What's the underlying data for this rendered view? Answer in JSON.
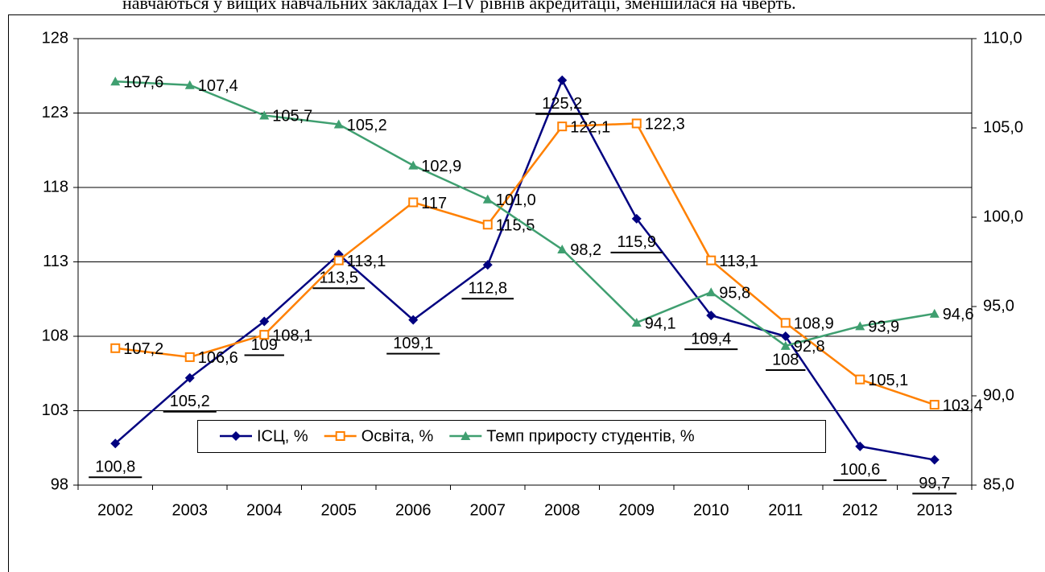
{
  "text": "навчаються у вищих навчальних закладах I–IV рівнів акредитації, зменшилася на чверть.",
  "chart_data": {
    "type": "line",
    "categories": [
      "2002",
      "2003",
      "2004",
      "2005",
      "2006",
      "2007",
      "2008",
      "2009",
      "2010",
      "2011",
      "2012",
      "2013"
    ],
    "series": [
      {
        "name": "ІСЦ, %",
        "color": "#000080",
        "marker": "diamond",
        "label_position": "below",
        "values": [
          100.8,
          105.2,
          109,
          113.5,
          109.1,
          112.8,
          125.2,
          115.9,
          109.4,
          108,
          100.6,
          99.7
        ],
        "value_labels": [
          "100,8",
          "105,2",
          "109",
          "113,5",
          "109,1",
          "112,8",
          "125,2",
          "115,9",
          "109,4",
          "108",
          "100,6",
          "99,7"
        ]
      },
      {
        "name": "Освіта, %",
        "color": "#ff8000",
        "marker": "square",
        "label_position": "right",
        "values": [
          107.2,
          106.6,
          108.1,
          113.1,
          117,
          115.5,
          122.1,
          122.3,
          113.1,
          108.9,
          105.1,
          103.4
        ],
        "value_labels": [
          "107,2",
          "106,6",
          "108,1",
          "113,1",
          "117",
          "115,5",
          "122,1",
          "122,3",
          "113,1",
          "108,9",
          "105,1",
          "103,4"
        ]
      },
      {
        "name": "Темп приросту студентів, %",
        "color": "#3f9f70",
        "marker": "triangle",
        "label_position": "right",
        "axis": "y2",
        "values": [
          107.6,
          107.4,
          105.7,
          105.2,
          102.9,
          101.0,
          98.2,
          94.1,
          95.8,
          92.8,
          93.9,
          94.6
        ],
        "value_labels": [
          "107,6",
          "107,4",
          "105,7",
          "105,2",
          "102,9",
          "101,0",
          "98,2",
          "94,1",
          "95,8",
          "92,8",
          "93,9",
          "94,6"
        ]
      }
    ],
    "ylim": [
      98,
      128
    ],
    "yticks": [
      98,
      103,
      108,
      113,
      118,
      123,
      128
    ],
    "y2lim": [
      85,
      110
    ],
    "y2ticks": [
      {
        "value": 85,
        "label": "85,0"
      },
      {
        "value": 90,
        "label": "90,0"
      },
      {
        "value": 95,
        "label": "95,0"
      },
      {
        "value": 100,
        "label": "100,0"
      },
      {
        "value": 105,
        "label": "105,0"
      },
      {
        "value": 110,
        "label": "110,0"
      }
    ],
    "grid": true,
    "legend": "lower center"
  }
}
